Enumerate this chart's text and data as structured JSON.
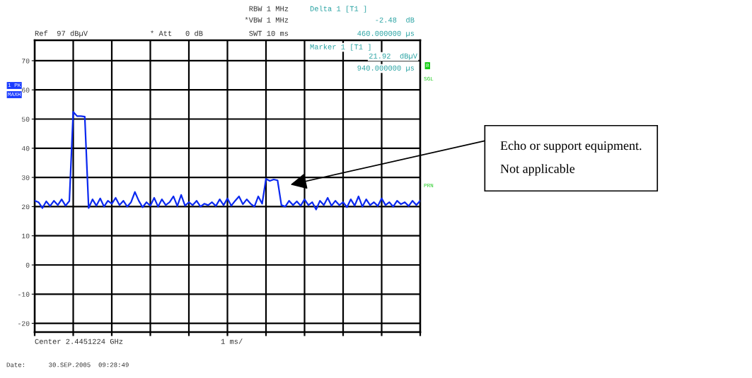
{
  "chart_data": {
    "type": "line",
    "categories": [
      null,
      null,
      null,
      null,
      null,
      null,
      null,
      null,
      null,
      null,
      null,
      null,
      null,
      null,
      null,
      null,
      null,
      null,
      null,
      null,
      null,
      null,
      null,
      null,
      null,
      null,
      null,
      null,
      null,
      null,
      null,
      null,
      null,
      null,
      null,
      null,
      null,
      null,
      null,
      null,
      null,
      null,
      null,
      null,
      null,
      null,
      null,
      null,
      null,
      null,
      null,
      null,
      null,
      null,
      null,
      null,
      null,
      null,
      null,
      null,
      null,
      null,
      null,
      null,
      null,
      null,
      null,
      null,
      null,
      null,
      null,
      null,
      null,
      null,
      null,
      null,
      null,
      null,
      null,
      null,
      null,
      null,
      null,
      null,
      null,
      null,
      null,
      null,
      null,
      null,
      null,
      null,
      null,
      null,
      null,
      null,
      null,
      null,
      null,
      null,
      null
    ],
    "ylim": [
      -23,
      77
    ],
    "yticks": [
      -20,
      -10,
      0,
      10,
      20,
      30,
      40,
      50,
      60,
      70
    ],
    "grid": true,
    "series": [
      {
        "color": "#0a28f0",
        "values": [
          22,
          21.5,
          19.5,
          21.8,
          20.2,
          22,
          20.5,
          22.5,
          20.3,
          21.9,
          52.5,
          51,
          51,
          50.8,
          19.5,
          22.5,
          20.3,
          22.8,
          20,
          22,
          21,
          23,
          20.5,
          22,
          20,
          21.5,
          25,
          22,
          19.8,
          21.5,
          20.3,
          23,
          20,
          22.5,
          20.5,
          21.5,
          23.5,
          20.2,
          24,
          20.3,
          21.5,
          20.5,
          22,
          20,
          21,
          20.5,
          21.5,
          20.2,
          22.5,
          20.5,
          22.8,
          20.3,
          22,
          23.5,
          20.8,
          22.5,
          21,
          20,
          23.5,
          21,
          29.5,
          28.8,
          29.3,
          29,
          20.5,
          20,
          22,
          20.5,
          21.8,
          20.3,
          22.5,
          20.5,
          21.5,
          19,
          22,
          20.5,
          23,
          20.3,
          22,
          20.5,
          21.5,
          19.8,
          22.5,
          20.3,
          23.5,
          20,
          22.5,
          20.5,
          21.5,
          20.2,
          22.8,
          20.5,
          21.5,
          20,
          22,
          20.8,
          21.5,
          20.2,
          22,
          20.5,
          22
        ]
      }
    ],
    "annotations": [
      "Ref  97 dBµV",
      "* Att   0 dB",
      "RBW 1 MHz",
      "*VBW 1 MHz",
      "SWT 10 ms",
      "Delta 1 [T1 ]",
      "-2.48  dB",
      "460.000000 µs",
      "Marker 1 [T1 ]",
      "21.92  dBµV",
      "940.000000 µs",
      "1 PK",
      "MAXH",
      "B",
      "SGL",
      "PRN",
      "Center 2.4451224 GHz",
      "1 ms/",
      "Date:      30.SEP.2005  09:28:49",
      "Echo or support equipment.\n\nNot applicable"
    ]
  }
}
